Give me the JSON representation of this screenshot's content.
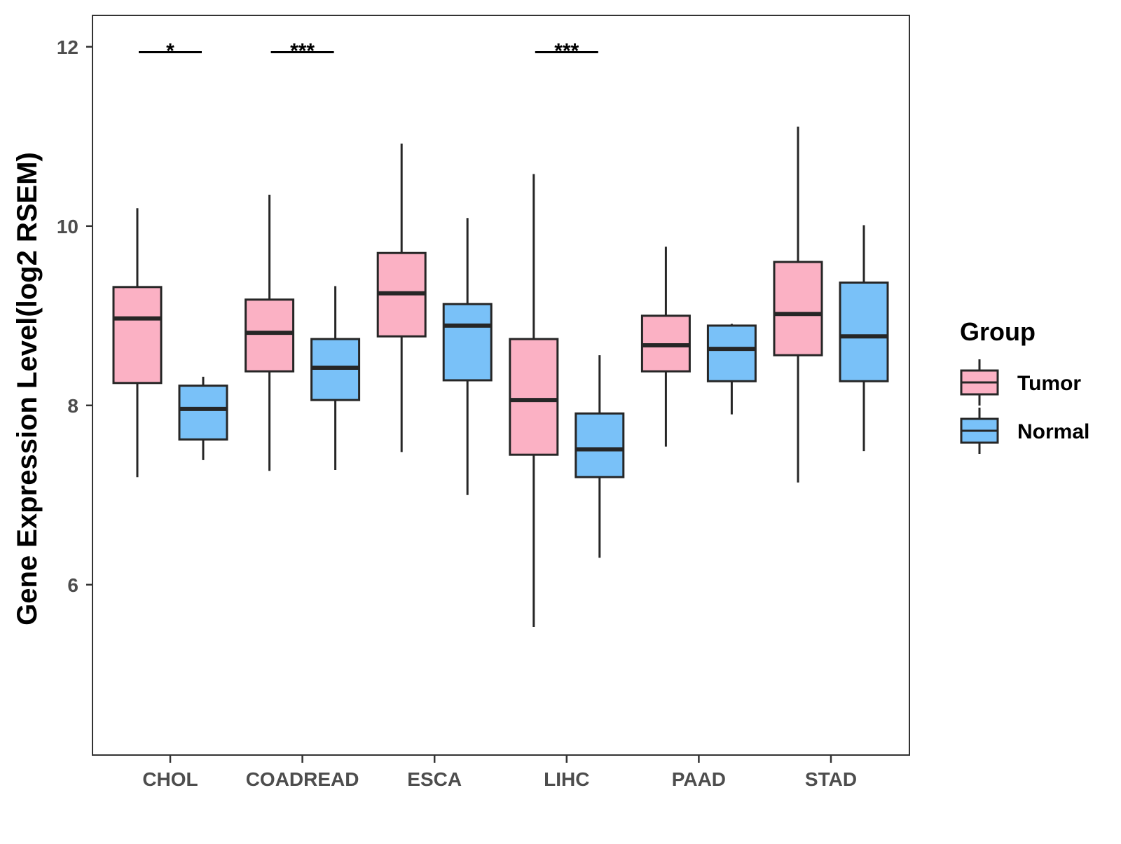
{
  "chart_data": {
    "type": "boxplot",
    "title": "",
    "xlabel": "",
    "ylabel": "Gene Expression Level(log2 RSEM)",
    "ylim": [
      4.1,
      12.35
    ],
    "yticks": [
      6,
      8,
      10,
      12
    ],
    "categories": [
      "CHOL",
      "COADREAD",
      "ESCA",
      "LIHC",
      "PAAD",
      "STAD"
    ],
    "legend": {
      "title": "Group",
      "position": "right",
      "entries": [
        "Tumor",
        "Normal"
      ]
    },
    "colors": {
      "Tumor": "#fbb1c4",
      "Normal": "#79c1f8",
      "outline": "#262626"
    },
    "series": [
      {
        "name": "Tumor",
        "boxes": [
          {
            "category": "CHOL",
            "min": 7.2,
            "q1": 8.25,
            "median": 8.97,
            "q3": 9.32,
            "max": 10.2
          },
          {
            "category": "COADREAD",
            "min": 7.27,
            "q1": 8.38,
            "median": 8.81,
            "q3": 9.18,
            "max": 10.35
          },
          {
            "category": "ESCA",
            "min": 7.48,
            "q1": 8.77,
            "median": 9.25,
            "q3": 9.7,
            "max": 10.92
          },
          {
            "category": "LIHC",
            "min": 5.53,
            "q1": 7.45,
            "median": 8.06,
            "q3": 8.74,
            "max": 10.58
          },
          {
            "category": "PAAD",
            "min": 7.54,
            "q1": 8.38,
            "median": 8.67,
            "q3": 9.0,
            "max": 9.77
          },
          {
            "category": "STAD",
            "min": 7.14,
            "q1": 8.56,
            "median": 9.02,
            "q3": 9.6,
            "max": 11.11
          }
        ]
      },
      {
        "name": "Normal",
        "boxes": [
          {
            "category": "CHOL",
            "min": 7.39,
            "q1": 7.62,
            "median": 7.96,
            "q3": 8.22,
            "max": 8.32
          },
          {
            "category": "COADREAD",
            "min": 7.28,
            "q1": 8.06,
            "median": 8.42,
            "q3": 8.74,
            "max": 9.33
          },
          {
            "category": "ESCA",
            "min": 7.0,
            "q1": 8.28,
            "median": 8.89,
            "q3": 9.13,
            "max": 10.09
          },
          {
            "category": "LIHC",
            "min": 6.3,
            "q1": 7.2,
            "median": 7.51,
            "q3": 7.91,
            "max": 8.56
          },
          {
            "category": "PAAD",
            "min": 7.9,
            "q1": 8.27,
            "median": 8.63,
            "q3": 8.89,
            "max": 8.91
          },
          {
            "category": "STAD",
            "min": 7.49,
            "q1": 8.27,
            "median": 8.77,
            "q3": 9.37,
            "max": 10.01
          }
        ]
      }
    ],
    "significance": [
      {
        "category": "CHOL",
        "label": "*",
        "y": 11.94
      },
      {
        "category": "COADREAD",
        "label": "***",
        "y": 11.94
      },
      {
        "category": "LIHC",
        "label": "***",
        "y": 11.94
      }
    ]
  }
}
